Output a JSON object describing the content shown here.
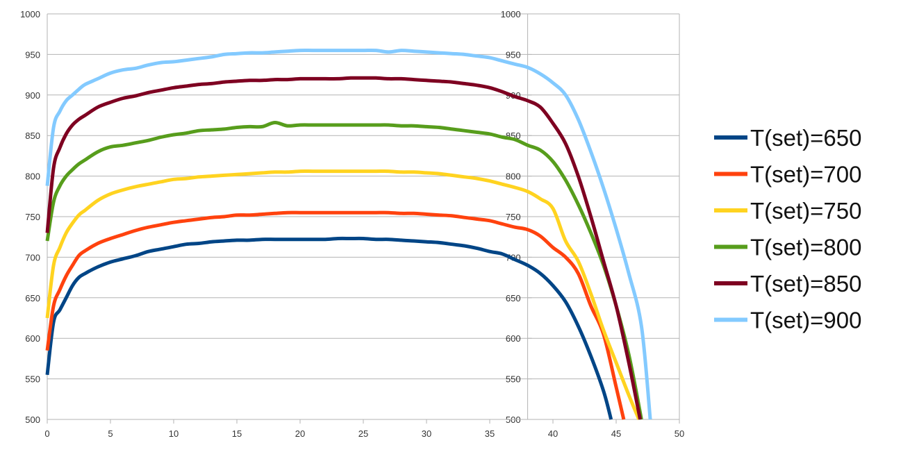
{
  "chart_data": {
    "type": "line",
    "title": "",
    "xlabel": "",
    "ylabel": "",
    "xlim": [
      0,
      50
    ],
    "ylim": [
      500,
      1000
    ],
    "x_ticks": [
      "0",
      "5",
      "10",
      "15",
      "20",
      "25",
      "30",
      "35",
      "40",
      "45",
      "50"
    ],
    "y_ticks": [
      "500",
      "550",
      "600",
      "650",
      "700",
      "750",
      "800",
      "850",
      "900",
      "950",
      "1000"
    ],
    "secondary_y_ticks": [
      "500",
      "550",
      "600",
      "650",
      "700",
      "750",
      "800",
      "850",
      "900",
      "950",
      "1000"
    ],
    "secondary_y_axis_at_x": 38,
    "grid": true,
    "legend_position": "right",
    "series": [
      {
        "name": "T(set)=650",
        "color": "#004586",
        "x": [
          0,
          0.5,
          1,
          1.5,
          2,
          2.5,
          3,
          4,
          5,
          6,
          7,
          8,
          9,
          10,
          11,
          12,
          13,
          14,
          15,
          16,
          17,
          18,
          19,
          20,
          21,
          22,
          23,
          24,
          25,
          26,
          27,
          28,
          29,
          30,
          31,
          32,
          33,
          34,
          35,
          36,
          37,
          38,
          39,
          40,
          41,
          42,
          43,
          44,
          44.6
        ],
        "y": [
          555,
          620,
          635,
          650,
          665,
          675,
          680,
          688,
          694,
          698,
          702,
          707,
          710,
          713,
          716,
          717,
          719,
          720,
          721,
          721,
          722,
          722,
          722,
          722,
          722,
          722,
          723,
          723,
          723,
          722,
          722,
          721,
          720,
          719,
          718,
          716,
          714,
          711,
          707,
          704,
          697,
          690,
          680,
          665,
          645,
          615,
          578,
          535,
          500
        ]
      },
      {
        "name": "T(set)=700",
        "color": "#ff420e",
        "x": [
          0,
          0.5,
          1,
          1.5,
          2,
          2.5,
          3,
          4,
          5,
          6,
          7,
          8,
          9,
          10,
          11,
          12,
          13,
          14,
          15,
          16,
          17,
          18,
          19,
          20,
          21,
          22,
          23,
          24,
          25,
          26,
          27,
          28,
          29,
          30,
          31,
          32,
          33,
          34,
          35,
          36,
          37,
          38,
          39,
          40,
          41,
          42,
          43,
          44,
          45,
          45.6
        ],
        "y": [
          585,
          640,
          660,
          677,
          690,
          702,
          708,
          717,
          723,
          728,
          733,
          737,
          740,
          743,
          745,
          747,
          749,
          750,
          752,
          752,
          753,
          754,
          755,
          755,
          755,
          755,
          755,
          755,
          755,
          755,
          755,
          754,
          754,
          753,
          752,
          751,
          749,
          747,
          745,
          741,
          737,
          734,
          726,
          712,
          700,
          680,
          640,
          605,
          540,
          500
        ]
      },
      {
        "name": "T(set)=750",
        "color": "#ffd320",
        "x": [
          0,
          0.5,
          1,
          1.5,
          2,
          2.5,
          3,
          4,
          5,
          6,
          7,
          8,
          9,
          10,
          11,
          12,
          13,
          14,
          15,
          16,
          17,
          18,
          19,
          20,
          21,
          22,
          23,
          24,
          25,
          26,
          27,
          28,
          29,
          30,
          31,
          32,
          33,
          34,
          35,
          36,
          37,
          38,
          39,
          40,
          41,
          42,
          43,
          44,
          45,
          46,
          46.8
        ],
        "y": [
          625,
          690,
          712,
          730,
          742,
          752,
          758,
          770,
          778,
          783,
          787,
          790,
          793,
          796,
          797,
          799,
          800,
          801,
          802,
          803,
          804,
          805,
          805,
          806,
          806,
          806,
          806,
          806,
          806,
          806,
          806,
          805,
          805,
          804,
          803,
          801,
          799,
          797,
          794,
          790,
          786,
          781,
          772,
          760,
          720,
          695,
          655,
          610,
          570,
          530,
          500
        ]
      },
      {
        "name": "T(set)=800",
        "color": "#579d1c",
        "x": [
          0,
          0.5,
          1,
          1.5,
          2,
          2.5,
          3,
          4,
          5,
          6,
          7,
          8,
          9,
          10,
          11,
          12,
          13,
          14,
          15,
          16,
          17,
          18,
          19,
          20,
          21,
          22,
          23,
          24,
          25,
          26,
          27,
          28,
          29,
          30,
          31,
          32,
          33,
          34,
          35,
          36,
          37,
          38,
          39,
          40,
          41,
          42,
          43,
          44,
          45,
          46,
          47
        ],
        "y": [
          720,
          768,
          788,
          800,
          808,
          815,
          820,
          830,
          836,
          838,
          841,
          844,
          848,
          851,
          853,
          856,
          857,
          858,
          860,
          861,
          861,
          866,
          862,
          863,
          863,
          863,
          863,
          863,
          863,
          863,
          863,
          862,
          862,
          861,
          860,
          858,
          856,
          854,
          852,
          848,
          845,
          838,
          832,
          818,
          795,
          765,
          730,
          690,
          640,
          580,
          500
        ]
      },
      {
        "name": "T(set)=850",
        "color": "#7e0021",
        "x": [
          0,
          0.5,
          1,
          1.5,
          2,
          2.5,
          3,
          4,
          5,
          6,
          7,
          8,
          9,
          10,
          11,
          12,
          13,
          14,
          15,
          16,
          17,
          18,
          19,
          20,
          21,
          22,
          23,
          24,
          25,
          26,
          27,
          28,
          29,
          30,
          31,
          32,
          33,
          34,
          35,
          36,
          37,
          38,
          39,
          40,
          41,
          42,
          43,
          44,
          45,
          46,
          46.9
        ],
        "y": [
          730,
          810,
          835,
          852,
          863,
          870,
          875,
          885,
          891,
          896,
          899,
          903,
          906,
          909,
          911,
          913,
          914,
          916,
          917,
          918,
          918,
          919,
          919,
          920,
          920,
          920,
          920,
          921,
          921,
          921,
          920,
          920,
          919,
          918,
          917,
          916,
          914,
          912,
          909,
          904,
          898,
          893,
          885,
          865,
          840,
          800,
          750,
          695,
          640,
          570,
          500
        ]
      },
      {
        "name": "T(set)=900",
        "color": "#83caff",
        "x": [
          0,
          0.5,
          1,
          1.5,
          2,
          2.5,
          3,
          4,
          5,
          6,
          7,
          8,
          9,
          10,
          11,
          12,
          13,
          14,
          15,
          16,
          17,
          18,
          19,
          20,
          21,
          22,
          23,
          24,
          25,
          26,
          27,
          28,
          29,
          30,
          31,
          32,
          33,
          34,
          35,
          36,
          37,
          38,
          39,
          40,
          41,
          42,
          43,
          44,
          45,
          46,
          47,
          47.7
        ],
        "y": [
          788,
          860,
          880,
          893,
          900,
          907,
          913,
          920,
          927,
          931,
          933,
          937,
          940,
          941,
          943,
          945,
          947,
          950,
          951,
          952,
          952,
          953,
          954,
          955,
          955,
          955,
          955,
          955,
          955,
          955,
          953,
          955,
          954,
          953,
          952,
          951,
          950,
          948,
          946,
          942,
          938,
          934,
          926,
          915,
          900,
          870,
          830,
          785,
          735,
          680,
          615,
          500
        ]
      }
    ]
  }
}
